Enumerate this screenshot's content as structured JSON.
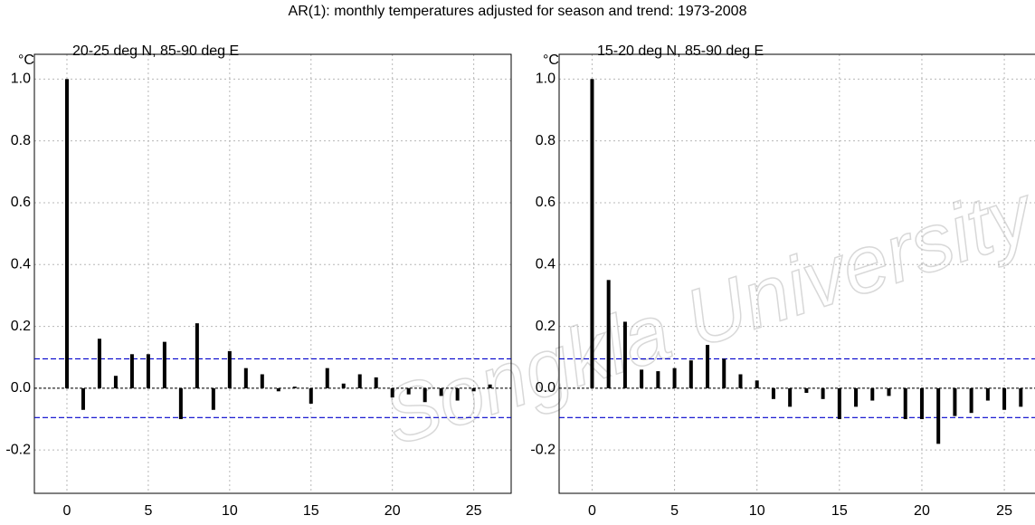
{
  "title": "AR(1): monthly temperatures adjusted for season and trend: 1973-2008",
  "watermark": "Songkla University",
  "chart_data": [
    {
      "type": "bar",
      "unit": "°C",
      "subtitle": "20-25 deg N, 85-90 deg E",
      "x": [
        0,
        1,
        2,
        3,
        4,
        5,
        6,
        7,
        8,
        9,
        10,
        11,
        12,
        13,
        14,
        15,
        16,
        17,
        18,
        19,
        20,
        21,
        22,
        23,
        24,
        25,
        26
      ],
      "values": [
        1.0,
        -0.07,
        0.16,
        0.04,
        0.11,
        0.11,
        0.15,
        -0.1,
        0.21,
        -0.07,
        0.12,
        0.065,
        0.045,
        -0.01,
        0.005,
        -0.05,
        0.065,
        0.015,
        0.045,
        0.035,
        -0.03,
        -0.02,
        -0.045,
        -0.025,
        -0.04,
        -0.01,
        0.012
      ],
      "color": "#000000",
      "xlim": [
        -2,
        27.3
      ],
      "xticks": [
        0,
        5,
        10,
        15,
        20,
        25
      ],
      "ylim": [
        -0.34,
        1.08
      ],
      "yticks": [
        {
          "value": 1.0,
          "label": "1.0"
        },
        0.8,
        0.6,
        0.4,
        0.2,
        {
          "value": 0.0,
          "label": "0.0"
        },
        -0.2
      ],
      "confidence_limits": [
        0.095,
        -0.095
      ],
      "confidence_color": "#0000cc",
      "grid": true
    },
    {
      "type": "bar",
      "unit": "°C",
      "subtitle": "15-20 deg N, 85-90 deg E",
      "x": [
        0,
        1,
        2,
        3,
        4,
        5,
        6,
        7,
        8,
        9,
        10,
        11,
        12,
        13,
        14,
        15,
        16,
        17,
        18,
        19,
        20,
        21,
        22,
        23,
        24,
        25,
        26
      ],
      "values": [
        1.0,
        0.35,
        0.215,
        0.06,
        0.055,
        0.065,
        0.09,
        0.14,
        0.095,
        0.045,
        0.025,
        -0.035,
        -0.06,
        -0.015,
        -0.035,
        -0.1,
        -0.06,
        -0.04,
        -0.025,
        -0.1,
        -0.1,
        -0.18,
        -0.09,
        -0.08,
        -0.04,
        -0.07,
        -0.06
      ],
      "color": "#000000",
      "xlim": [
        -2,
        27.3
      ],
      "xticks": [
        0,
        5,
        10,
        15,
        20,
        25
      ],
      "ylim": [
        -0.34,
        1.08
      ],
      "yticks": [
        {
          "value": 1.0,
          "label": "1.0"
        },
        0.8,
        0.6,
        0.4,
        0.2,
        {
          "value": 0.0,
          "label": "0.0"
        },
        -0.2
      ],
      "confidence_limits": [
        0.095,
        -0.095
      ],
      "confidence_color": "#0000cc",
      "grid": true
    }
  ]
}
